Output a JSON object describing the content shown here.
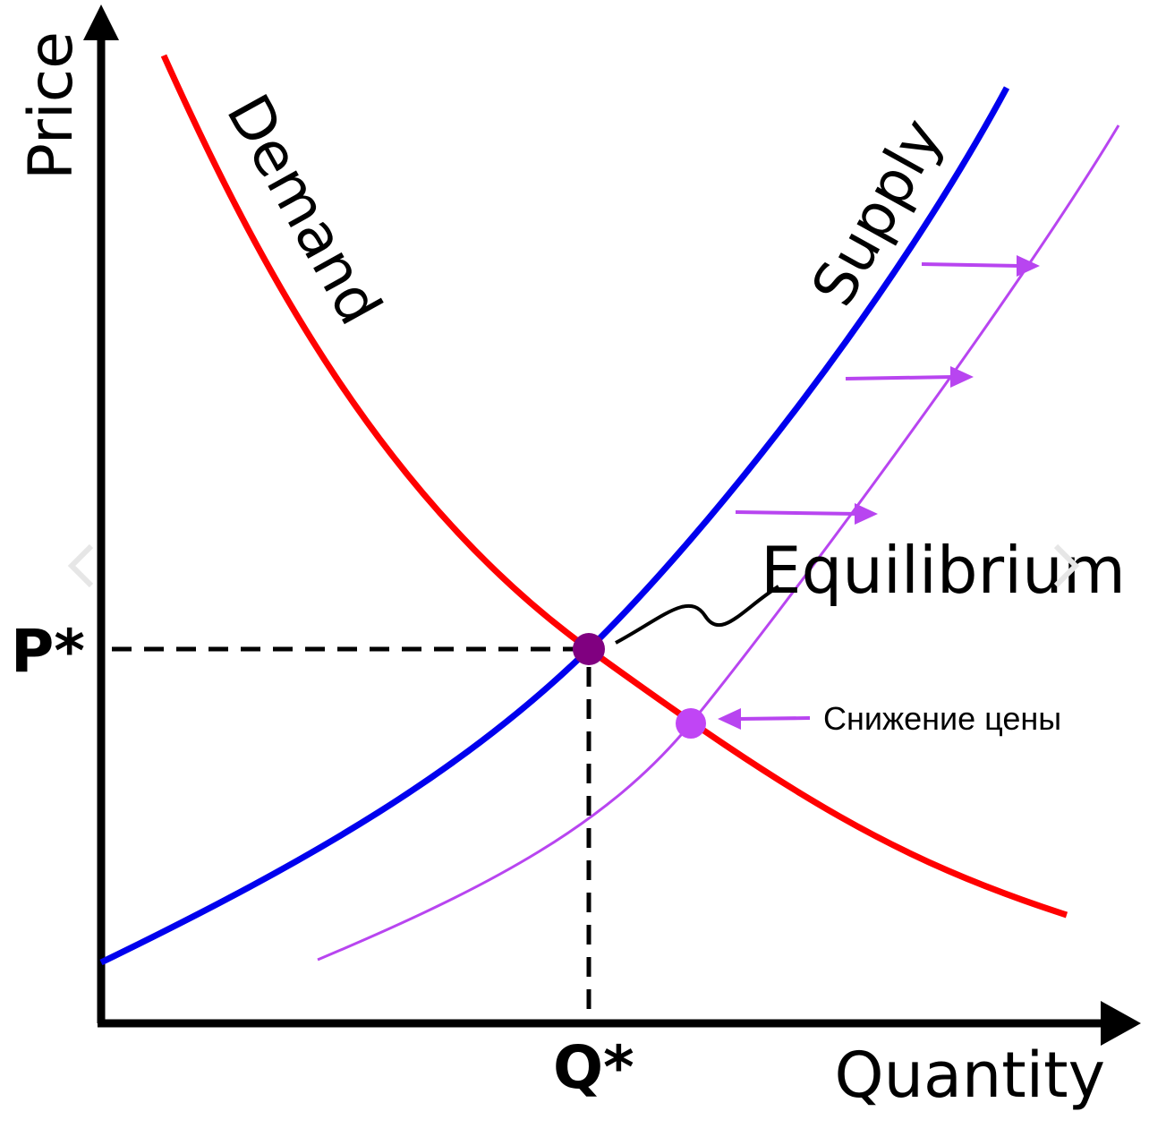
{
  "axes": {
    "y_label": "Price",
    "x_label": "Quantity"
  },
  "curves": {
    "demand": "Demand",
    "supply": "Supply"
  },
  "labels": {
    "equilibrium": "Equilibrium",
    "price": "P*",
    "quantity": "Q*",
    "price_drop": "Снижение цены"
  }
}
